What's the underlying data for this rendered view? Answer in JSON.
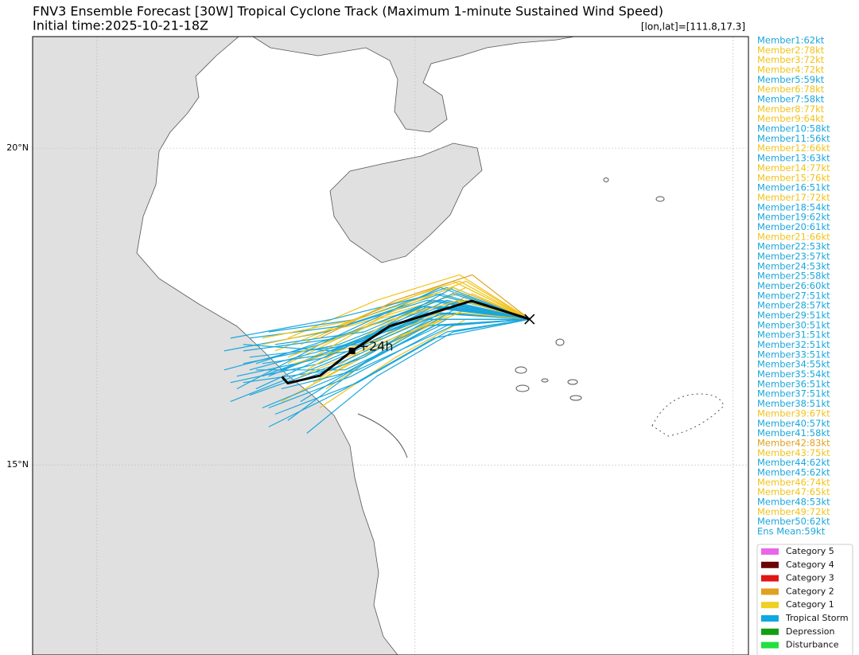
{
  "chart_data": {
    "type": "track",
    "title": "FNV3 Ensemble Forecast [30W] Tropical Cyclone Track (Maximum 1-minute Sustained Wind Speed)",
    "subtitle": "Initial time:2025-10-21-18Z",
    "position_label": "[lon,lat]=[111.8,17.3]",
    "xlim": [
      103.99,
      115.24
    ],
    "ylim": [
      12.0,
      21.76
    ],
    "yticks": [
      {
        "value": 20,
        "label": "20°N"
      },
      {
        "value": 15,
        "label": "15°N"
      }
    ],
    "lon_grid": [
      105,
      110,
      115
    ],
    "grid": true,
    "members": [
      {
        "name": "Member1:62kt",
        "color": "#1aa7dc",
        "track": [
          [
            111.8,
            17.3
          ],
          [
            110.6,
            17.8
          ],
          [
            109.2,
            17.0
          ],
          [
            107.6,
            16.4
          ]
        ]
      },
      {
        "name": "Member2:78kt",
        "color": "#f2c31b",
        "track": [
          [
            111.8,
            17.3
          ],
          [
            110.8,
            17.6
          ],
          [
            109.4,
            17.3
          ],
          [
            108.0,
            16.6
          ]
        ]
      },
      {
        "name": "Member3:72kt",
        "color": "#f2c31b",
        "track": [
          [
            111.8,
            17.3
          ],
          [
            110.5,
            17.4
          ],
          [
            109.0,
            16.6
          ],
          [
            107.9,
            16.0
          ]
        ]
      },
      {
        "name": "Member4:72kt",
        "color": "#f2c31b",
        "track": [
          [
            111.8,
            17.3
          ],
          [
            110.7,
            17.9
          ],
          [
            109.5,
            17.5
          ],
          [
            108.2,
            16.9
          ]
        ]
      },
      {
        "name": "Member5:59kt",
        "color": "#1aa7dc",
        "track": [
          [
            111.8,
            17.3
          ],
          [
            110.4,
            17.2
          ],
          [
            108.9,
            16.5
          ],
          [
            107.5,
            16.5
          ]
        ]
      },
      {
        "name": "Member6:78kt",
        "color": "#f2c31b",
        "track": [
          [
            111.8,
            17.3
          ],
          [
            110.9,
            17.7
          ],
          [
            109.6,
            17.1
          ],
          [
            108.4,
            16.3
          ]
        ]
      },
      {
        "name": "Member7:58kt",
        "color": "#1aa7dc",
        "track": [
          [
            111.8,
            17.3
          ],
          [
            110.3,
            17.5
          ],
          [
            108.8,
            16.9
          ],
          [
            107.3,
            16.6
          ]
        ]
      },
      {
        "name": "Member8:77kt",
        "color": "#f2c31b",
        "track": [
          [
            111.8,
            17.3
          ],
          [
            110.6,
            17.9
          ],
          [
            109.3,
            17.4
          ],
          [
            107.8,
            16.8
          ]
        ]
      },
      {
        "name": "Member9:64kt",
        "color": "#f2c31b",
        "track": [
          [
            111.8,
            17.3
          ],
          [
            110.8,
            17.3
          ],
          [
            109.7,
            16.7
          ],
          [
            108.5,
            15.9
          ]
        ]
      },
      {
        "name": "Member10:58kt",
        "color": "#1aa7dc",
        "track": [
          [
            111.8,
            17.3
          ],
          [
            110.2,
            17.6
          ],
          [
            108.6,
            17.1
          ],
          [
            107.0,
            16.8
          ]
        ]
      },
      {
        "name": "Member11:56kt",
        "color": "#1aa7dc",
        "track": [
          [
            111.8,
            17.3
          ],
          [
            110.5,
            17.1
          ],
          [
            109.1,
            16.3
          ],
          [
            107.8,
            15.8
          ]
        ]
      },
      {
        "name": "Member12:66kt",
        "color": "#f2c31b",
        "track": [
          [
            111.8,
            17.3
          ],
          [
            110.7,
            17.7
          ],
          [
            109.0,
            17.2
          ],
          [
            107.6,
            16.9
          ]
        ]
      },
      {
        "name": "Member13:63kt",
        "color": "#1aa7dc",
        "track": [
          [
            111.8,
            17.3
          ],
          [
            110.4,
            17.8
          ],
          [
            108.7,
            17.0
          ],
          [
            107.2,
            16.2
          ]
        ]
      },
      {
        "name": "Member14:77kt",
        "color": "#f2c31b",
        "track": [
          [
            111.8,
            17.3
          ],
          [
            110.9,
            17.5
          ],
          [
            109.8,
            17.0
          ],
          [
            108.6,
            16.2
          ]
        ]
      },
      {
        "name": "Member15:76kt",
        "color": "#f2c31b",
        "track": [
          [
            111.8,
            17.3
          ],
          [
            110.6,
            17.4
          ],
          [
            109.3,
            16.8
          ],
          [
            108.1,
            16.1
          ]
        ]
      },
      {
        "name": "Member16:51kt",
        "color": "#1aa7dc",
        "track": [
          [
            111.8,
            17.3
          ],
          [
            110.1,
            17.3
          ],
          [
            108.5,
            16.6
          ],
          [
            107.1,
            16.3
          ]
        ]
      },
      {
        "name": "Member17:72kt",
        "color": "#f2c31b",
        "track": [
          [
            111.8,
            17.3
          ],
          [
            110.7,
            18.0
          ],
          [
            109.4,
            17.6
          ],
          [
            108.0,
            17.0
          ]
        ]
      },
      {
        "name": "Member18:54kt",
        "color": "#1aa7dc",
        "track": [
          [
            111.8,
            17.3
          ],
          [
            110.3,
            17.0
          ],
          [
            108.9,
            16.2
          ],
          [
            107.7,
            15.6
          ]
        ]
      },
      {
        "name": "Member19:62kt",
        "color": "#1aa7dc",
        "track": [
          [
            111.8,
            17.3
          ],
          [
            110.5,
            17.6
          ],
          [
            109.1,
            16.9
          ],
          [
            107.4,
            16.7
          ]
        ]
      },
      {
        "name": "Member20:61kt",
        "color": "#1aa7dc",
        "track": [
          [
            111.8,
            17.3
          ],
          [
            110.2,
            17.4
          ],
          [
            108.7,
            16.8
          ],
          [
            107.3,
            16.9
          ]
        ]
      },
      {
        "name": "Member21:66kt",
        "color": "#f2c31b",
        "track": [
          [
            111.8,
            17.3
          ],
          [
            110.8,
            17.8
          ],
          [
            109.5,
            17.2
          ],
          [
            108.3,
            16.5
          ]
        ]
      },
      {
        "name": "Member22:53kt",
        "color": "#1aa7dc",
        "track": [
          [
            111.8,
            17.3
          ],
          [
            110.3,
            17.2
          ],
          [
            108.8,
            16.4
          ],
          [
            107.6,
            15.9
          ]
        ]
      },
      {
        "name": "Member23:57kt",
        "color": "#1aa7dc",
        "track": [
          [
            111.8,
            17.3
          ],
          [
            110.6,
            17.5
          ],
          [
            109.0,
            16.9
          ],
          [
            107.5,
            16.2
          ]
        ]
      },
      {
        "name": "Member24:53kt",
        "color": "#1aa7dc",
        "track": [
          [
            111.8,
            17.3
          ],
          [
            110.4,
            17.7
          ],
          [
            108.9,
            17.2
          ],
          [
            107.4,
            17.0
          ]
        ]
      },
      {
        "name": "Member25:58kt",
        "color": "#1aa7dc",
        "track": [
          [
            111.8,
            17.3
          ],
          [
            110.5,
            17.3
          ],
          [
            109.2,
            16.6
          ],
          [
            108.0,
            15.7
          ]
        ]
      },
      {
        "name": "Member26:60kt",
        "color": "#1aa7dc",
        "track": [
          [
            111.8,
            17.3
          ],
          [
            110.7,
            17.6
          ],
          [
            109.3,
            17.0
          ],
          [
            107.9,
            16.5
          ]
        ]
      },
      {
        "name": "Member27:51kt",
        "color": "#1aa7dc",
        "track": [
          [
            111.8,
            17.3
          ],
          [
            110.2,
            17.5
          ],
          [
            108.6,
            16.7
          ],
          [
            107.2,
            16.4
          ]
        ]
      },
      {
        "name": "Member28:57kt",
        "color": "#1aa7dc",
        "track": [
          [
            111.8,
            17.3
          ],
          [
            110.6,
            17.1
          ],
          [
            109.4,
            16.4
          ],
          [
            108.3,
            15.5
          ]
        ]
      },
      {
        "name": "Member29:51kt",
        "color": "#1aa7dc",
        "track": [
          [
            111.8,
            17.3
          ],
          [
            110.3,
            17.7
          ],
          [
            108.7,
            17.3
          ],
          [
            107.1,
            17.0
          ]
        ]
      },
      {
        "name": "Member30:51kt",
        "color": "#1aa7dc",
        "track": [
          [
            111.8,
            17.3
          ],
          [
            110.5,
            17.4
          ],
          [
            108.9,
            16.9
          ],
          [
            107.7,
            16.4
          ]
        ]
      },
      {
        "name": "Member31:51kt",
        "color": "#1aa7dc",
        "track": [
          [
            111.8,
            17.3
          ],
          [
            110.4,
            17.6
          ],
          [
            109.0,
            17.1
          ],
          [
            107.5,
            16.6
          ]
        ]
      },
      {
        "name": "Member32:51kt",
        "color": "#1aa7dc",
        "track": [
          [
            111.8,
            17.3
          ],
          [
            110.6,
            17.2
          ],
          [
            109.1,
            16.5
          ],
          [
            107.9,
            16.2
          ]
        ]
      },
      {
        "name": "Member33:51kt",
        "color": "#1aa7dc",
        "track": [
          [
            111.8,
            17.3
          ],
          [
            110.1,
            17.5
          ],
          [
            108.5,
            16.9
          ],
          [
            107.0,
            16.5
          ]
        ]
      },
      {
        "name": "Member34:55kt",
        "color": "#1aa7dc",
        "track": [
          [
            111.8,
            17.3
          ],
          [
            110.7,
            17.5
          ],
          [
            109.5,
            16.8
          ],
          [
            108.2,
            16.0
          ]
        ]
      },
      {
        "name": "Member35:54kt",
        "color": "#1aa7dc",
        "track": [
          [
            111.8,
            17.3
          ],
          [
            110.3,
            17.3
          ],
          [
            108.8,
            16.6
          ],
          [
            107.4,
            16.1
          ]
        ]
      },
      {
        "name": "Member36:51kt",
        "color": "#1aa7dc",
        "track": [
          [
            111.8,
            17.3
          ],
          [
            110.5,
            17.8
          ],
          [
            109.1,
            17.3
          ],
          [
            107.7,
            17.1
          ]
        ]
      },
      {
        "name": "Member37:51kt",
        "color": "#1aa7dc",
        "track": [
          [
            111.8,
            17.3
          ],
          [
            110.4,
            17.4
          ],
          [
            109.2,
            16.7
          ],
          [
            108.1,
            16.3
          ]
        ]
      },
      {
        "name": "Member38:51kt",
        "color": "#1aa7dc",
        "track": [
          [
            111.8,
            17.3
          ],
          [
            110.2,
            17.2
          ],
          [
            108.7,
            16.5
          ],
          [
            107.3,
            16.3
          ]
        ]
      },
      {
        "name": "Member39:67kt",
        "color": "#f2c31b",
        "track": [
          [
            111.8,
            17.3
          ],
          [
            110.8,
            17.9
          ],
          [
            109.6,
            17.4
          ],
          [
            108.4,
            16.7
          ]
        ]
      },
      {
        "name": "Member40:57kt",
        "color": "#1aa7dc",
        "track": [
          [
            111.8,
            17.3
          ],
          [
            110.5,
            17.5
          ],
          [
            109.0,
            16.8
          ],
          [
            107.6,
            16.6
          ]
        ]
      },
      {
        "name": "Member41:58kt",
        "color": "#1aa7dc",
        "track": [
          [
            111.8,
            17.3
          ],
          [
            110.6,
            17.7
          ],
          [
            109.2,
            17.1
          ],
          [
            107.8,
            16.9
          ]
        ]
      },
      {
        "name": "Member42:83kt",
        "color": "#e0a020",
        "track": [
          [
            111.8,
            17.3
          ],
          [
            110.9,
            18.0
          ],
          [
            109.7,
            17.6
          ],
          [
            108.5,
            17.0
          ]
        ]
      },
      {
        "name": "Member43:75kt",
        "color": "#f2c31b",
        "track": [
          [
            111.8,
            17.3
          ],
          [
            110.7,
            17.4
          ],
          [
            109.4,
            16.9
          ],
          [
            108.2,
            16.4
          ]
        ]
      },
      {
        "name": "Member44:62kt",
        "color": "#1aa7dc",
        "track": [
          [
            111.8,
            17.3
          ],
          [
            110.3,
            17.6
          ],
          [
            108.8,
            17.0
          ],
          [
            107.3,
            16.8
          ]
        ]
      },
      {
        "name": "Member45:62kt",
        "color": "#1aa7dc",
        "track": [
          [
            111.8,
            17.3
          ],
          [
            110.5,
            17.2
          ],
          [
            109.0,
            16.4
          ],
          [
            107.7,
            15.9
          ]
        ]
      },
      {
        "name": "Member46:74kt",
        "color": "#f2c31b",
        "track": [
          [
            111.8,
            17.3
          ],
          [
            110.8,
            17.6
          ],
          [
            109.5,
            17.0
          ],
          [
            108.1,
            16.6
          ]
        ]
      },
      {
        "name": "Member47:65kt",
        "color": "#f2c31b",
        "track": [
          [
            111.8,
            17.3
          ],
          [
            110.6,
            17.8
          ],
          [
            109.1,
            17.3
          ],
          [
            107.6,
            17.0
          ]
        ]
      },
      {
        "name": "Member48:53kt",
        "color": "#1aa7dc",
        "track": [
          [
            111.8,
            17.3
          ],
          [
            110.2,
            17.3
          ],
          [
            108.6,
            16.6
          ],
          [
            107.1,
            16.0
          ]
        ]
      },
      {
        "name": "Member49:72kt",
        "color": "#f2c31b",
        "track": [
          [
            111.8,
            17.3
          ],
          [
            110.7,
            17.6
          ],
          [
            109.3,
            17.2
          ],
          [
            108.0,
            16.7
          ]
        ]
      },
      {
        "name": "Member50:62kt",
        "color": "#1aa7dc",
        "track": [
          [
            111.8,
            17.3
          ],
          [
            110.4,
            17.5
          ],
          [
            108.9,
            16.9
          ],
          [
            107.4,
            16.5
          ]
        ]
      }
    ],
    "mean": {
      "name": "Ens Mean:59kt",
      "color": "#1aa7dc",
      "track_color": "#000000",
      "track": [
        [
          111.8,
          17.3
        ],
        [
          110.89,
          17.59
        ],
        [
          109.6,
          17.19
        ],
        [
          109.01,
          16.8
        ],
        [
          108.51,
          16.41
        ],
        [
          108.0,
          16.29
        ],
        [
          107.91,
          16.39
        ]
      ],
      "marker_index": 3,
      "marker_label": "+24h"
    },
    "categories": [
      {
        "name": "Category 5",
        "color": "#e866e8"
      },
      {
        "name": "Category 4",
        "color": "#6b0505"
      },
      {
        "name": "Category 3",
        "color": "#e01515"
      },
      {
        "name": "Category 2",
        "color": "#e0a020"
      },
      {
        "name": "Category 1",
        "color": "#f0d020"
      },
      {
        "name": "Tropical Storm",
        "color": "#10a8e0"
      },
      {
        "name": "Depression",
        "color": "#12a012"
      },
      {
        "name": "Disturbance",
        "color": "#22e040"
      }
    ]
  }
}
